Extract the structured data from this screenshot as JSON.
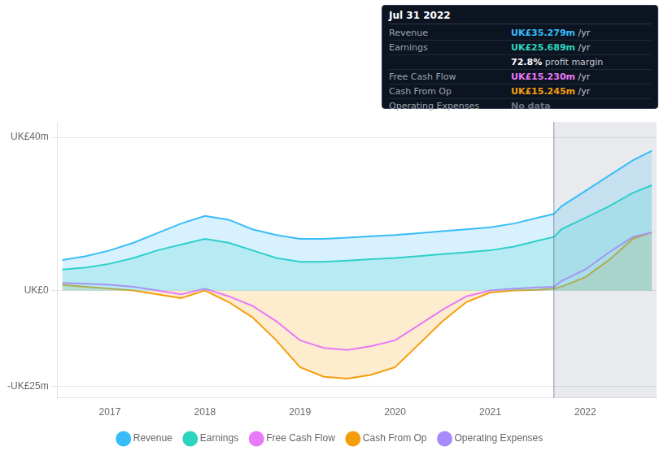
{
  "chart_data": {
    "type": "line",
    "x": [
      2016.5,
      2016.75,
      2017.0,
      2017.25,
      2017.5,
      2017.75,
      2018.0,
      2018.25,
      2018.5,
      2018.75,
      2019.0,
      2019.25,
      2019.5,
      2019.75,
      2020.0,
      2020.25,
      2020.5,
      2020.75,
      2021.0,
      2021.25,
      2021.5,
      2021.67,
      2021.75,
      2022.0,
      2022.25,
      2022.5,
      2022.7
    ],
    "xlim": [
      2016.45,
      2022.75
    ],
    "xticks": [
      2017,
      2018,
      2019,
      2020,
      2021,
      2022
    ],
    "ylim": [
      -28,
      44
    ],
    "yticks": [
      {
        "value": 40,
        "label": "UK£40m"
      },
      {
        "value": 0,
        "label": "UK£0"
      },
      {
        "value": -25,
        "label": "-UK£25m"
      }
    ],
    "grid": "y",
    "legend": "bottom",
    "series": [
      {
        "name": "Revenue",
        "color": "#38bdf8",
        "type": "area",
        "values": [
          8.0,
          9.0,
          10.5,
          12.5,
          15.0,
          17.5,
          19.5,
          18.5,
          16.0,
          14.5,
          13.5,
          13.5,
          13.8,
          14.2,
          14.5,
          15.0,
          15.5,
          16.0,
          16.5,
          17.5,
          19.0,
          20.0,
          22.0,
          26.0,
          30.0,
          34.0,
          36.5
        ]
      },
      {
        "name": "Earnings",
        "color": "#2dd4bf",
        "type": "area",
        "values": [
          5.5,
          6.0,
          7.0,
          8.5,
          10.5,
          12.0,
          13.5,
          12.5,
          10.5,
          8.5,
          7.5,
          7.5,
          7.8,
          8.2,
          8.5,
          9.0,
          9.5,
          10.0,
          10.5,
          11.5,
          13.0,
          14.0,
          16.0,
          19.0,
          22.0,
          25.5,
          27.5
        ]
      },
      {
        "name": "Free Cash Flow",
        "color": "#e879f9",
        "type": "line",
        "values": [
          2.0,
          1.8,
          1.5,
          1.0,
          0.0,
          -1.0,
          0.5,
          -1.5,
          -4.0,
          -8.0,
          -13.0,
          -15.0,
          -15.5,
          -14.5,
          -13.0,
          -9.0,
          -5.0,
          -1.5,
          0.0,
          0.5,
          0.8,
          1.0,
          2.5,
          5.5,
          10.0,
          14.0,
          15.2
        ]
      },
      {
        "name": "Cash From Op",
        "color": "#f59e0b",
        "type": "area",
        "values": [
          1.5,
          1.0,
          0.5,
          0.0,
          -1.0,
          -2.0,
          0.0,
          -3.0,
          -7.0,
          -13.0,
          -20.0,
          -22.5,
          -23.0,
          -22.0,
          -20.0,
          -14.0,
          -8.0,
          -3.0,
          -0.5,
          0.0,
          0.2,
          0.5,
          1.0,
          3.5,
          8.0,
          13.5,
          15.2
        ]
      },
      {
        "name": "Operating Expenses",
        "color": "#a78bfa",
        "type": "line",
        "values": [
          null,
          null,
          null,
          null,
          null,
          null,
          null,
          null,
          null,
          null,
          null,
          null,
          null,
          null,
          null,
          null,
          null,
          null,
          null,
          null,
          null,
          null,
          null,
          null,
          null,
          null,
          null
        ]
      }
    ],
    "annotations": [
      {
        "type": "vline",
        "x": 2021.67
      }
    ],
    "info_box": {
      "title": "Jul 31 2022",
      "rows": [
        {
          "label": "Revenue",
          "value": "UK£35.279m",
          "suffix": " /yr",
          "color": "#38bdf8"
        },
        {
          "label": "Earnings",
          "value": "UK£25.689m",
          "suffix": " /yr",
          "color": "#2dd4bf"
        },
        {
          "value": "72.8%",
          "suffix": " profit margin",
          "color": "#ffffff"
        },
        {
          "label": "Free Cash Flow",
          "value": "UK£15.230m",
          "suffix": " /yr",
          "color": "#e879f9"
        },
        {
          "label": "Cash From Op",
          "value": "UK£15.245m",
          "suffix": " /yr",
          "color": "#f59e0b"
        },
        {
          "label": "Operating Expenses",
          "value": "No data",
          "color": "#6b7280"
        }
      ]
    }
  }
}
